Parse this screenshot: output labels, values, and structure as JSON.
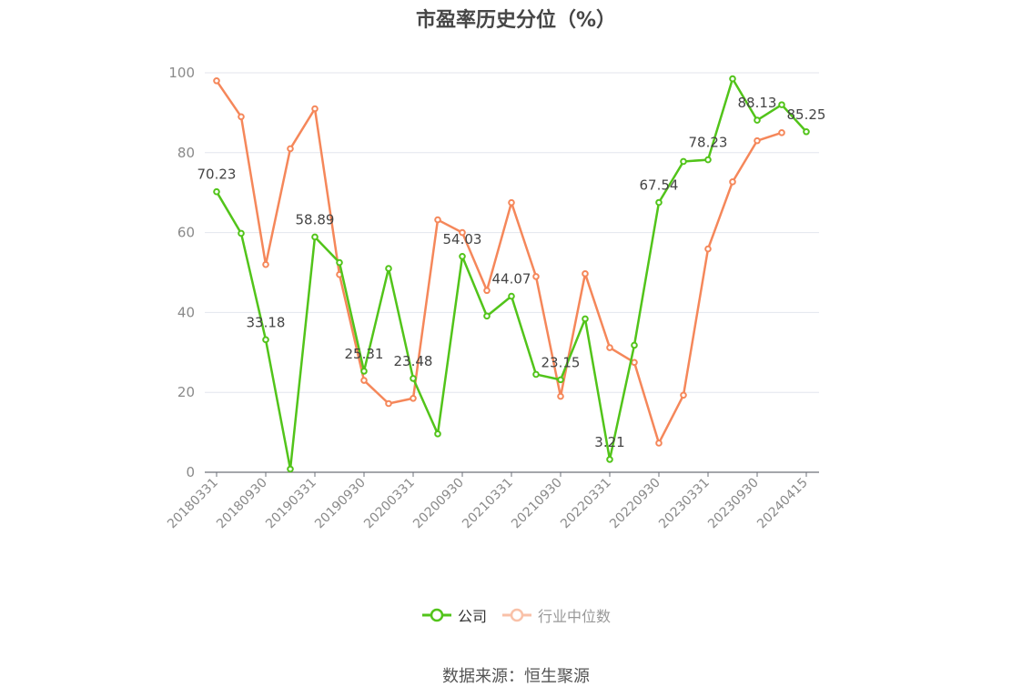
{
  "chart_data": {
    "type": "line",
    "title": "市盈率历史分位（%）",
    "ylim": [
      0,
      100
    ],
    "yticks": [
      0,
      20,
      40,
      60,
      80,
      100
    ],
    "grid": "horizontal",
    "legend_position": "bottom-center",
    "x_tick_labels": [
      "20180331",
      "20180930",
      "20190331",
      "20190930",
      "20200331",
      "20200930",
      "20210331",
      "20210930",
      "20220331",
      "20220930",
      "20230331",
      "20230930",
      "20240415"
    ],
    "x": [
      "20180331",
      "20180630",
      "20180930",
      "20181231",
      "20190331",
      "20190630",
      "20190930",
      "20191231",
      "20200331",
      "20200630",
      "20200930",
      "20201231",
      "20210331",
      "20210630",
      "20210930",
      "20211231",
      "20220331",
      "20220630",
      "20220930",
      "20221231",
      "20230331",
      "20230630",
      "20230930",
      "20231231",
      "20240415"
    ],
    "series": [
      {
        "name": "公司",
        "color": "#52c41a",
        "values": [
          70.23,
          59.8,
          33.18,
          0.8,
          58.89,
          52.5,
          25.31,
          51.0,
          23.48,
          9.6,
          54.03,
          39.1,
          44.07,
          24.5,
          23.15,
          38.4,
          3.21,
          31.8,
          67.54,
          77.8,
          78.23,
          98.5,
          88.13,
          92.0,
          85.25
        ],
        "data_labels": {
          "0": "70.23",
          "2": "33.18",
          "4": "58.89",
          "6": "25.31",
          "8": "23.48",
          "10": "54.03",
          "12": "44.07",
          "14": "23.15",
          "16": "3.21",
          "18": "67.54",
          "20": "78.23",
          "22": "88.13",
          "24": "85.25"
        }
      },
      {
        "name": "行业中位数",
        "color": "#f5875a",
        "values": [
          98.0,
          89.0,
          52.0,
          81.0,
          91.0,
          49.5,
          23.0,
          17.2,
          18.5,
          63.2,
          60.0,
          45.5,
          67.5,
          49.0,
          19.0,
          49.7,
          31.2,
          27.5,
          7.3,
          19.3,
          55.9,
          72.7,
          83.0,
          85.0,
          null
        ]
      }
    ]
  },
  "source_text": "数据来源：恒生聚源"
}
